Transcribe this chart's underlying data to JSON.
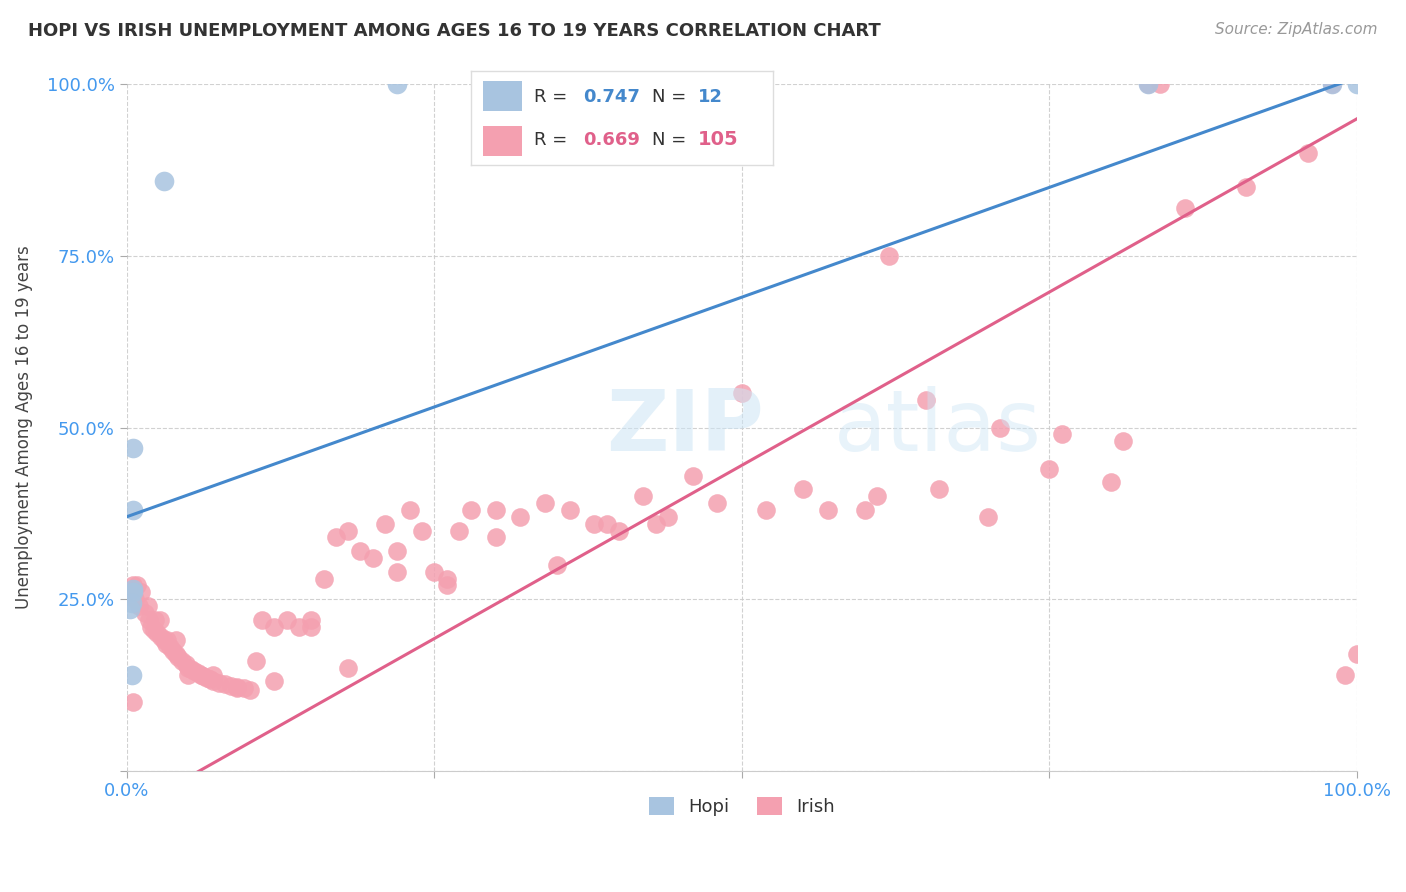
{
  "title": "HOPI VS IRISH UNEMPLOYMENT AMONG AGES 16 TO 19 YEARS CORRELATION CHART",
  "source": "Source: ZipAtlas.com",
  "ylabel": "Unemployment Among Ages 16 to 19 years",
  "hopi_R": 0.747,
  "hopi_N": 12,
  "irish_R": 0.669,
  "irish_N": 105,
  "hopi_color": "#a8c4e0",
  "irish_color": "#f4a0b0",
  "hopi_line_color": "#4488cc",
  "irish_line_color": "#e0608a",
  "background_color": "#ffffff",
  "grid_color": "#cccccc",
  "watermark_zip": "ZIP",
  "watermark_atlas": "atlas",
  "hopi_scatter_x": [
    0.22,
    0.03,
    0.005,
    0.005,
    0.005,
    0.005,
    0.004,
    0.003,
    0.004,
    1.0,
    0.98,
    0.83
  ],
  "hopi_scatter_y": [
    1.0,
    0.86,
    0.47,
    0.38,
    0.265,
    0.26,
    0.245,
    0.235,
    0.14,
    1.0,
    1.0,
    1.0
  ],
  "irish_scatter_x": [
    0.005,
    0.007,
    0.01,
    0.015,
    0.018,
    0.02,
    0.022,
    0.025,
    0.028,
    0.03,
    0.032,
    0.035,
    0.038,
    0.04,
    0.042,
    0.045,
    0.048,
    0.05,
    0.052,
    0.055,
    0.058,
    0.06,
    0.062,
    0.065,
    0.068,
    0.07,
    0.075,
    0.08,
    0.085,
    0.09,
    0.095,
    0.1,
    0.105,
    0.11,
    0.12,
    0.13,
    0.14,
    0.15,
    0.16,
    0.17,
    0.18,
    0.19,
    0.2,
    0.21,
    0.22,
    0.23,
    0.24,
    0.25,
    0.26,
    0.27,
    0.28,
    0.3,
    0.32,
    0.34,
    0.36,
    0.38,
    0.4,
    0.42,
    0.44,
    0.46,
    0.5,
    0.55,
    0.6,
    0.65,
    0.7,
    0.75,
    0.8,
    0.62,
    0.005,
    0.008,
    0.012,
    0.017,
    0.023,
    0.027,
    0.033,
    0.04,
    0.05,
    0.07,
    0.09,
    0.12,
    0.15,
    0.18,
    0.22,
    0.26,
    0.3,
    0.35,
    0.39,
    0.43,
    0.48,
    0.52,
    0.57,
    0.61,
    0.66,
    0.71,
    0.76,
    0.81,
    0.86,
    0.91,
    0.96,
    0.98,
    0.99,
    1.0,
    0.83,
    0.84,
    0.005
  ],
  "irish_scatter_y": [
    0.26,
    0.25,
    0.24,
    0.23,
    0.22,
    0.21,
    0.205,
    0.2,
    0.195,
    0.19,
    0.185,
    0.18,
    0.175,
    0.17,
    0.165,
    0.16,
    0.155,
    0.15,
    0.148,
    0.145,
    0.142,
    0.14,
    0.138,
    0.135,
    0.133,
    0.13,
    0.128,
    0.126,
    0.124,
    0.122,
    0.12,
    0.118,
    0.16,
    0.22,
    0.21,
    0.22,
    0.21,
    0.22,
    0.28,
    0.34,
    0.35,
    0.32,
    0.31,
    0.36,
    0.32,
    0.38,
    0.35,
    0.29,
    0.27,
    0.35,
    0.38,
    0.38,
    0.37,
    0.39,
    0.38,
    0.36,
    0.35,
    0.4,
    0.37,
    0.43,
    0.55,
    0.41,
    0.38,
    0.54,
    0.37,
    0.44,
    0.42,
    0.75,
    0.27,
    0.27,
    0.26,
    0.24,
    0.22,
    0.22,
    0.19,
    0.19,
    0.14,
    0.14,
    0.12,
    0.13,
    0.21,
    0.15,
    0.29,
    0.28,
    0.34,
    0.3,
    0.36,
    0.36,
    0.39,
    0.38,
    0.38,
    0.4,
    0.41,
    0.5,
    0.49,
    0.48,
    0.82,
    0.85,
    0.9,
    1.0,
    0.14,
    0.17,
    1.0,
    1.0,
    0.1
  ],
  "hopi_line_intercept": 0.37,
  "hopi_line_slope": 0.64,
  "irish_line_intercept": -0.06,
  "irish_line_slope": 1.01,
  "xtick_positions": [
    0,
    0.25,
    0.5,
    0.75,
    1.0
  ],
  "ytick_positions": [
    0,
    0.25,
    0.5,
    0.75,
    1.0
  ],
  "xticklabels": [
    "0.0%",
    "",
    "",
    "",
    "100.0%"
  ],
  "yticklabels": [
    "",
    "25.0%",
    "50.0%",
    "75.0%",
    "100.0%"
  ],
  "tick_color": "#4499ee",
  "title_fontsize": 13,
  "axis_label_fontsize": 12,
  "tick_fontsize": 13
}
